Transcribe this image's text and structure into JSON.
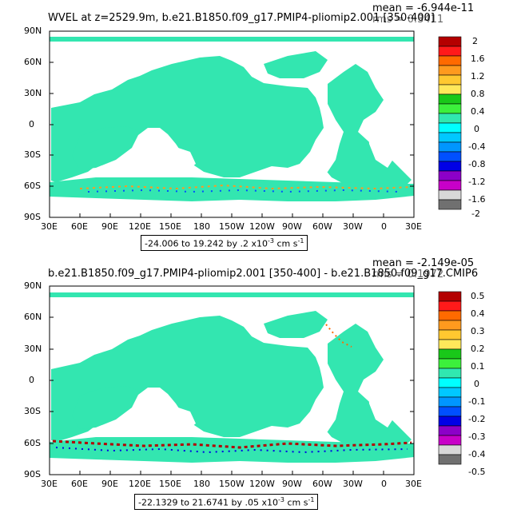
{
  "colors": {
    "land": "#ffffff",
    "ocean": "#33e6b0",
    "ocean_dots": "#1ecfcf",
    "frame": "#000000"
  },
  "panels": [
    {
      "title": "WVEL at z=2529.9m, b.e21.B1850.f09_g17.PMIP4-pliomip2.001 [350-400]",
      "stat_mean": "mean = -6.944e-11",
      "stat_rms": "rms = 0.3411",
      "range_text": "-24.006 to 19.242 by .2 x10",
      "range_exp": "-3",
      "range_units": " cm s",
      "range_units_exp": "-1",
      "lat_ticks": [
        "90N",
        "60N",
        "30N",
        "0",
        "30S",
        "60S",
        "90S"
      ],
      "lon_ticks": [
        "30E",
        "60E",
        "90E",
        "120E",
        "150E",
        "180",
        "150W",
        "120W",
        "90W",
        "60W",
        "30W",
        "0",
        "30E"
      ],
      "colorbar": {
        "labels": [
          "2",
          "1.6",
          "1.2",
          "0.8",
          "0.4",
          "0",
          "-0.4",
          "-0.8",
          "-1.2",
          "-1.6",
          "-2"
        ],
        "colors": [
          "#b40000",
          "#ff1a1a",
          "#ff6a00",
          "#ff9a1e",
          "#ffc830",
          "#ffe85a",
          "#19c819",
          "#3cf03c",
          "#30e8b0",
          "#00ffff",
          "#00c8ff",
          "#0096ff",
          "#0050ff",
          "#0000e6",
          "#8c00c8",
          "#c800c8",
          "#d8d8d8",
          "#707070"
        ]
      }
    },
    {
      "title": "b.e21.B1850.f09_g17.PMIP4-pliomip2.001 [350-400] - b.e21.B1850.f09_g17.CMIP6",
      "stat_mean": "mean = -2.149e-05",
      "stat_rms": "rms = 0.1972",
      "range_text": "-22.1329 to 21.6741 by .05 x10",
      "range_exp": "-3",
      "range_units": " cm s",
      "range_units_exp": "-1",
      "lat_ticks": [
        "90N",
        "60N",
        "30N",
        "0",
        "30S",
        "60S",
        "90S"
      ],
      "lon_ticks": [
        "30E",
        "60E",
        "90E",
        "120E",
        "150E",
        "180",
        "150W",
        "120W",
        "90W",
        "60W",
        "30W",
        "0",
        "30E"
      ],
      "colorbar": {
        "labels": [
          "0.5",
          "0.4",
          "0.3",
          "0.2",
          "0.1",
          "0",
          "-0.1",
          "-0.2",
          "-0.3",
          "-0.4",
          "-0.5"
        ],
        "colors": [
          "#b40000",
          "#ff1a1a",
          "#ff6a00",
          "#ff9a1e",
          "#ffc830",
          "#ffe85a",
          "#19c819",
          "#3cf03c",
          "#30e8b0",
          "#00ffff",
          "#00c8ff",
          "#0096ff",
          "#0050ff",
          "#0000e6",
          "#8c00c8",
          "#c800c8",
          "#d8d8d8",
          "#707070"
        ]
      }
    }
  ]
}
